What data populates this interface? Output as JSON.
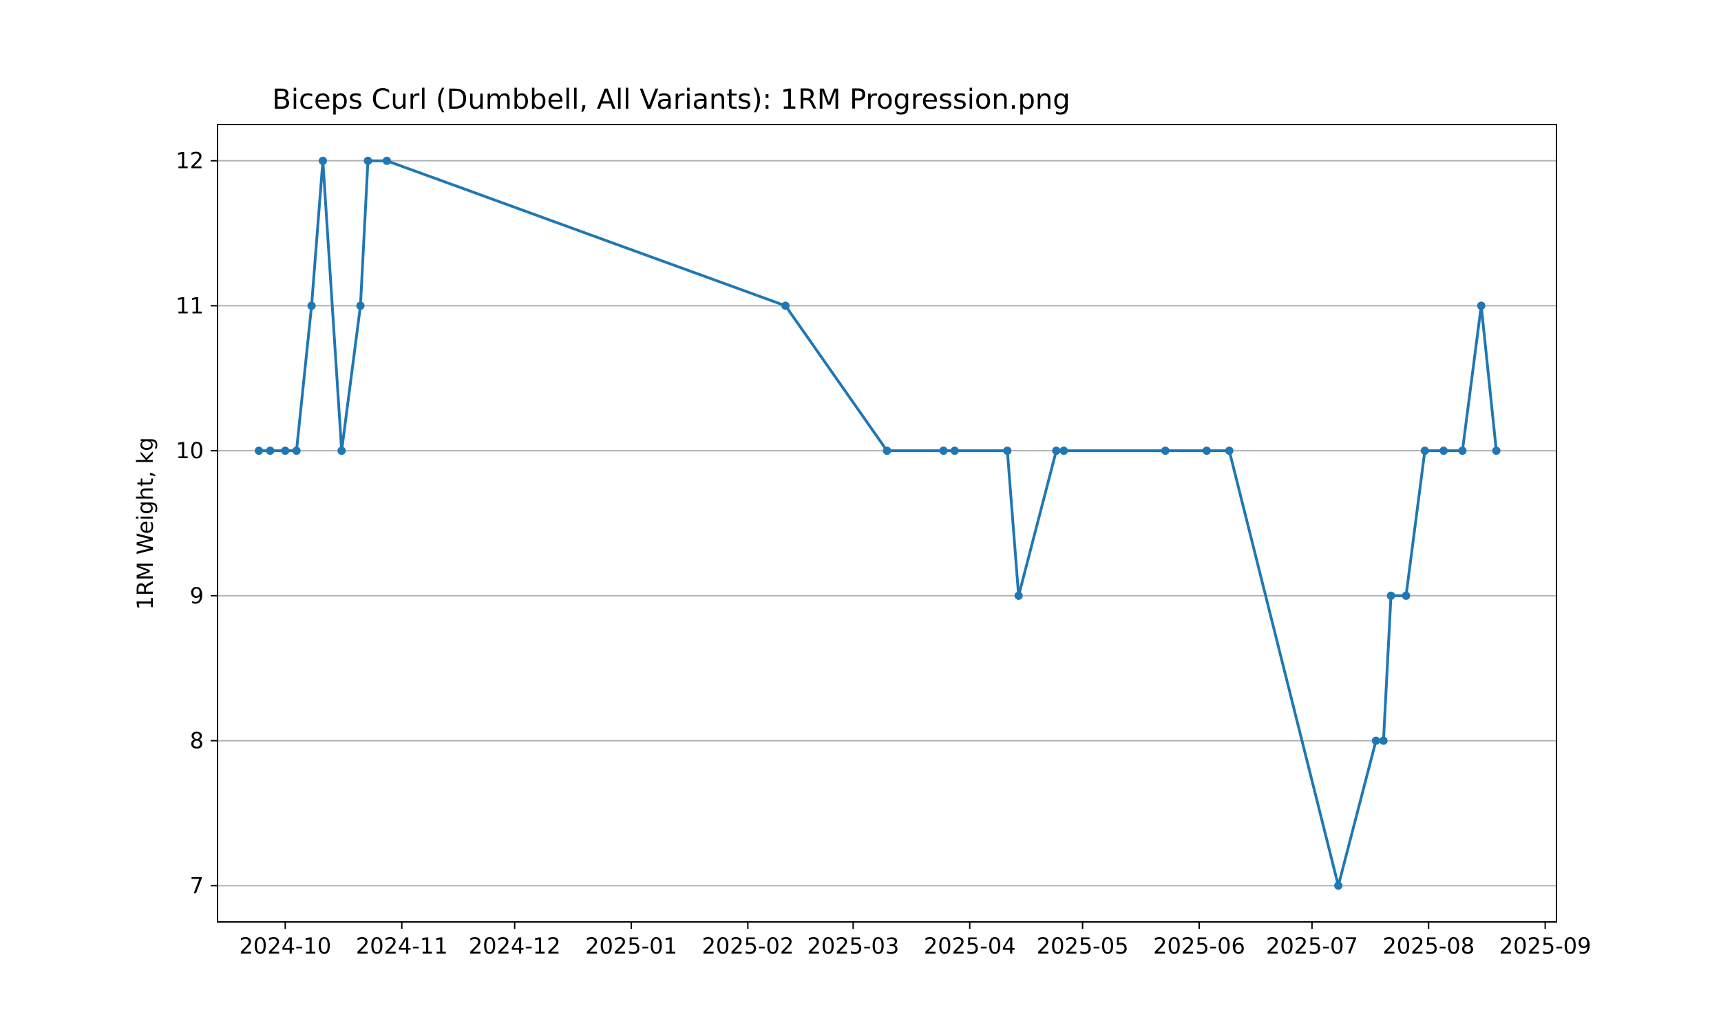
{
  "chart_data": {
    "type": "line",
    "title": "Biceps Curl (Dumbbell, All Variants): 1RM Progression.png",
    "xlabel": "",
    "ylabel": "1RM Weight, kg",
    "ylim": [
      6.75,
      12.25
    ],
    "xlim": [
      "2024-09-13",
      "2025-09-04"
    ],
    "yticks": [
      7,
      8,
      9,
      10,
      11,
      12
    ],
    "xticks": [
      "2024-10",
      "2024-11",
      "2024-12",
      "2025-01",
      "2025-02",
      "2025-03",
      "2025-04",
      "2025-05",
      "2025-06",
      "2025-07",
      "2025-08",
      "2025-09"
    ],
    "grid": "horizontal",
    "color": "#1f77b4",
    "series": [
      {
        "x": [
          "2024-09-24",
          "2024-09-27",
          "2024-10-01",
          "2024-10-04",
          "2024-10-08",
          "2024-10-11",
          "2024-10-16",
          "2024-10-21",
          "2024-10-23",
          "2024-10-28",
          "2025-02-11",
          "2025-03-10",
          "2025-03-25",
          "2025-03-28",
          "2025-04-11",
          "2025-04-14",
          "2025-04-24",
          "2025-04-26",
          "2025-05-23",
          "2025-06-03",
          "2025-06-09",
          "2025-07-08",
          "2025-07-18",
          "2025-07-20",
          "2025-07-22",
          "2025-07-26",
          "2025-07-31",
          "2025-08-05",
          "2025-08-10",
          "2025-08-15",
          "2025-08-19"
        ],
        "values": [
          10,
          10,
          10,
          10,
          11,
          12,
          10,
          11,
          12,
          12,
          11,
          10,
          10,
          10,
          10,
          9,
          10,
          10,
          10,
          10,
          10,
          7,
          8,
          8,
          9,
          9,
          10,
          10,
          10,
          11,
          10
        ]
      }
    ]
  }
}
